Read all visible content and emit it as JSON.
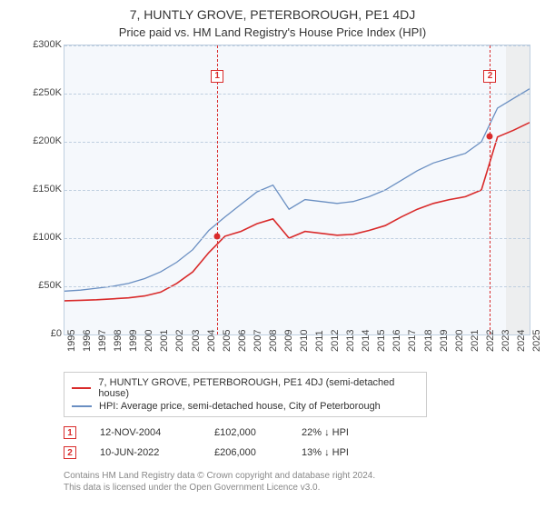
{
  "chart": {
    "type": "line",
    "title": "7, HUNTLY GROVE, PETERBOROUGH, PE1 4DJ",
    "subtitle": "Price paid vs. HM Land Registry's House Price Index (HPI)",
    "background_color": "#f5f8fc",
    "border_color": "#bfcfe0",
    "grid_color": "#bfcfe0",
    "title_fontsize": 14,
    "subtitle_fontsize": 13,
    "tick_fontsize": 11,
    "text_color": "#333333",
    "ylim": [
      0,
      300000
    ],
    "ytick_step": 50000,
    "yticks": [
      "£0",
      "£50K",
      "£100K",
      "£150K",
      "£200K",
      "£250K",
      "£300K"
    ],
    "xlim": [
      1995,
      2025
    ],
    "xticks": [
      "1995",
      "1996",
      "1997",
      "1998",
      "1999",
      "2000",
      "2001",
      "2002",
      "2003",
      "2004",
      "2005",
      "2006",
      "2007",
      "2008",
      "2009",
      "2010",
      "2011",
      "2012",
      "2013",
      "2014",
      "2015",
      "2016",
      "2017",
      "2018",
      "2019",
      "2020",
      "2021",
      "2022",
      "2023",
      "2024",
      "2025"
    ],
    "shade_from_year": 2023.5,
    "series": [
      {
        "name": "7, HUNTLY GROVE, PETERBOROUGH, PE1 4DJ (semi-detached house)",
        "color": "#d92b2b",
        "line_width": 1.6,
        "y": [
          35000,
          35500,
          36000,
          37000,
          38000,
          40000,
          44000,
          53000,
          65000,
          85000,
          102000,
          107000,
          115000,
          120000,
          100000,
          107000,
          105000,
          103000,
          104000,
          108000,
          113000,
          122000,
          130000,
          136000,
          140000,
          143000,
          150000,
          205000,
          212000,
          220000
        ]
      },
      {
        "name": "HPI: Average price, semi-detached house, City of Peterborough",
        "color": "#6a8fc2",
        "line_width": 1.3,
        "y": [
          45000,
          46000,
          48000,
          50000,
          53000,
          58000,
          65000,
          75000,
          88000,
          108000,
          122000,
          135000,
          148000,
          155000,
          130000,
          140000,
          138000,
          136000,
          138000,
          143000,
          150000,
          160000,
          170000,
          178000,
          183000,
          188000,
          200000,
          235000,
          245000,
          255000
        ]
      }
    ],
    "markers": [
      {
        "label": "1",
        "x_year": 2004.85,
        "y_value": 102000,
        "box_y_value": 268000
      },
      {
        "label": "2",
        "x_year": 2022.45,
        "y_value": 206000,
        "box_y_value": 268000
      }
    ]
  },
  "legend": {
    "items": [
      {
        "color": "#d92b2b",
        "label": "7, HUNTLY GROVE, PETERBOROUGH, PE1 4DJ (semi-detached house)"
      },
      {
        "color": "#6a8fc2",
        "label": "HPI: Average price, semi-detached house, City of Peterborough"
      }
    ]
  },
  "data_points": [
    {
      "label": "1",
      "date": "12-NOV-2004",
      "price": "£102,000",
      "change": "22% ↓ HPI"
    },
    {
      "label": "2",
      "date": "10-JUN-2022",
      "price": "£206,000",
      "change": "13% ↓ HPI"
    }
  ],
  "footer": {
    "line1": "Contains HM Land Registry data © Crown copyright and database right 2024.",
    "line2": "This data is licensed under the Open Government Licence v3.0."
  }
}
